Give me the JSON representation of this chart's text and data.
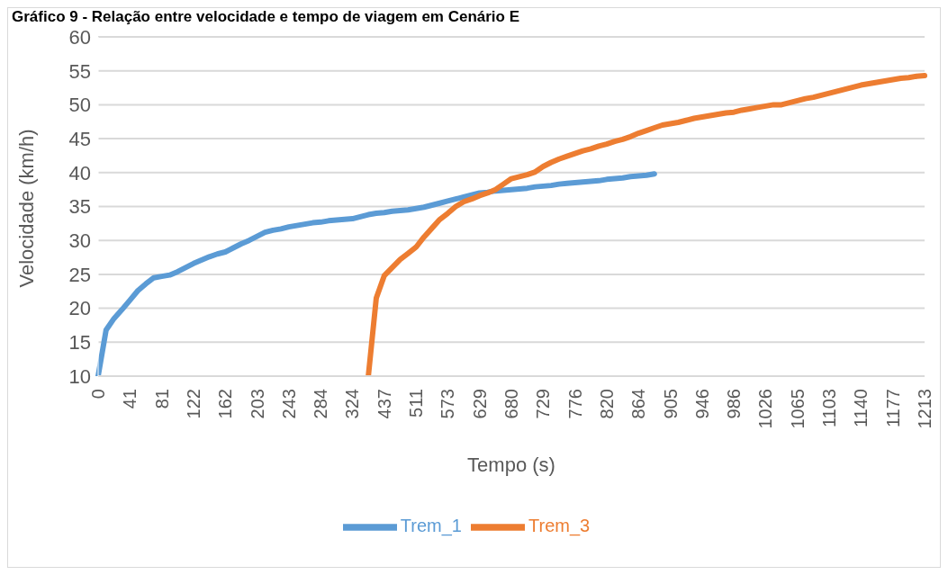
{
  "chart_data": {
    "type": "line",
    "title": "Gráfico 9 - Relação entre velocidade e tempo de viagem em Cenário E",
    "xlabel": "Tempo (s)",
    "ylabel": "Velocidade (km/h)",
    "categories": [
      "0",
      null,
      null,
      null,
      "41",
      null,
      null,
      null,
      "81",
      null,
      null,
      null,
      "122",
      null,
      null,
      null,
      "162",
      null,
      null,
      null,
      "203",
      null,
      null,
      null,
      "243",
      null,
      null,
      null,
      "284",
      null,
      null,
      null,
      "324",
      null,
      null,
      null,
      "437",
      null,
      null,
      null,
      "511",
      null,
      null,
      null,
      "573",
      null,
      null,
      null,
      "629",
      null,
      null,
      null,
      "680",
      null,
      null,
      null,
      "729",
      null,
      null,
      null,
      "776",
      null,
      null,
      null,
      "820",
      null,
      null,
      null,
      "864",
      null,
      null,
      null,
      "905",
      null,
      null,
      null,
      "946",
      null,
      null,
      null,
      "986",
      null,
      null,
      null,
      "1026",
      null,
      null,
      null,
      "1065",
      null,
      null,
      null,
      "1103",
      null,
      null,
      null,
      "1140",
      null,
      null,
      null,
      "1177",
      null,
      null,
      null,
      "1213"
    ],
    "series": [
      {
        "name": "Trem_1",
        "color": "#5b9bd5",
        "values": [
          10,
          16.8,
          18.5,
          19.8,
          21.2,
          22.6,
          23.6,
          24.5,
          24.7,
          24.9,
          25.4,
          26,
          26.6,
          27.1,
          27.6,
          28,
          28.3,
          28.9,
          29.5,
          30,
          30.6,
          31.2,
          31.5,
          31.7,
          32,
          32.2,
          32.4,
          32.6,
          32.7,
          32.9,
          33,
          33.1,
          33.2,
          33.5,
          33.8,
          34,
          34.1,
          34.3,
          34.4,
          34.5,
          34.7,
          34.9,
          35.2,
          35.5,
          35.8,
          36.1,
          36.4,
          36.7,
          37,
          37.1,
          37.3,
          37.4,
          37.5,
          37.6,
          37.7,
          37.9,
          38,
          38.1,
          38.3,
          38.4,
          38.5,
          38.6,
          38.7,
          38.8,
          39,
          39.1,
          39.2,
          39.4,
          39.5,
          39.6,
          39.8,
          null,
          null,
          null,
          null,
          null,
          null,
          null,
          null,
          null,
          null,
          null,
          null,
          null,
          null,
          null,
          null,
          null,
          null,
          null,
          null,
          null,
          null,
          null,
          null,
          null,
          null,
          null,
          null,
          null,
          null,
          null,
          null,
          null,
          null
        ]
      },
      {
        "name": "Trem_3",
        "color": "#ed7d31",
        "values": [
          null,
          null,
          null,
          null,
          null,
          null,
          null,
          null,
          null,
          null,
          null,
          null,
          null,
          null,
          null,
          null,
          null,
          null,
          null,
          null,
          null,
          null,
          null,
          null,
          null,
          null,
          null,
          null,
          null,
          null,
          null,
          null,
          null,
          null,
          10,
          21.5,
          24.8,
          26,
          27.2,
          28.1,
          29,
          30.5,
          31.8,
          33.1,
          34,
          35,
          35.7,
          36.1,
          36.6,
          37,
          37.5,
          38.3,
          39.1,
          39.4,
          39.7,
          40.1,
          40.9,
          41.5,
          42,
          42.4,
          42.8,
          43.2,
          43.5,
          43.9,
          44.2,
          44.6,
          44.9,
          45.3,
          45.8,
          46.2,
          46.6,
          47,
          47.2,
          47.4,
          47.7,
          48,
          48.2,
          48.4,
          48.6,
          48.8,
          48.9,
          49.2,
          49.4,
          49.6,
          49.8,
          50,
          50,
          50.3,
          50.6,
          50.9,
          51.1,
          51.4,
          51.7,
          52,
          52.3,
          52.6,
          52.9,
          53.1,
          53.3,
          53.5,
          53.7,
          53.9,
          54,
          54.2,
          54.3
        ]
      }
    ],
    "ylim": [
      10,
      60
    ],
    "yticks": [
      10,
      15,
      20,
      25,
      30,
      35,
      40,
      45,
      50,
      55,
      60
    ],
    "grid": "y",
    "legend": "bottom",
    "marker": "none",
    "line_style": "solid"
  }
}
